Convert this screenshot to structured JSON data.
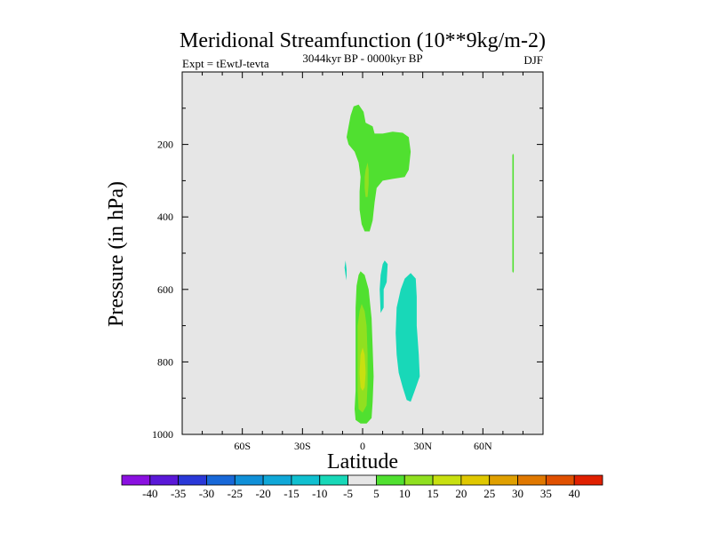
{
  "chart_data": {
    "type": "contour",
    "title": "Meridional Streamfunction (10**9kg/m-2)",
    "left_label": "Expt = tEwtJ-tevta",
    "center_label": "3044kyr BP - 0000kyr BP",
    "right_label": "DJF",
    "xlabel": "Latitude",
    "ylabel": "Pressure (in hPa)",
    "xlim": [
      -90,
      90
    ],
    "ylim": [
      1000,
      0
    ],
    "x_ticks": [
      -60,
      -30,
      0,
      30,
      60
    ],
    "x_tick_labels": [
      "60S",
      "30S",
      "0",
      "30N",
      "60N"
    ],
    "y_ticks": [
      200,
      400,
      600,
      800,
      1000
    ],
    "y_tick_labels": [
      "200",
      "400",
      "600",
      "800",
      "1000"
    ],
    "background_color": "#e6e6e6",
    "colorbar": {
      "labels": [
        "-40",
        "-35",
        "-30",
        "-25",
        "-20",
        "-15",
        "-10",
        "-5",
        "5",
        "10",
        "15",
        "20",
        "25",
        "30",
        "35",
        "40"
      ],
      "colors": [
        "#8a10e0",
        "#5a18d8",
        "#2a38d8",
        "#1868d8",
        "#1090d8",
        "#10a8d8",
        "#10c0d0",
        "#18d8b8",
        "#e6e6e6",
        "#50e030",
        "#90e020",
        "#c8e010",
        "#e0c800",
        "#e0a000",
        "#e07800",
        "#e05000",
        "#e02000"
      ]
    },
    "regions": [
      {
        "name": "upper-positive-5-10",
        "level": "5 to 10",
        "color": "#50e030",
        "points": [
          [
            -4.5,
            95
          ],
          [
            -2,
            90
          ],
          [
            0.5,
            110
          ],
          [
            1.5,
            140
          ],
          [
            5,
            150
          ],
          [
            6,
            170
          ],
          [
            10,
            170
          ],
          [
            15,
            165
          ],
          [
            20,
            168
          ],
          [
            23,
            180
          ],
          [
            24,
            220
          ],
          [
            23,
            270
          ],
          [
            21,
            290
          ],
          [
            15,
            295
          ],
          [
            10,
            300
          ],
          [
            7,
            320
          ],
          [
            6,
            360
          ],
          [
            5,
            410
          ],
          [
            3.5,
            440
          ],
          [
            1,
            440
          ],
          [
            -0.5,
            420
          ],
          [
            -1.5,
            380
          ],
          [
            -1.5,
            330
          ],
          [
            -1,
            290
          ],
          [
            -2,
            250
          ],
          [
            -4,
            220
          ],
          [
            -7,
            200
          ],
          [
            -8,
            180
          ],
          [
            -7,
            150
          ],
          [
            -6,
            120
          ]
        ]
      },
      {
        "name": "upper-positive-10-15",
        "level": "10 to 15",
        "color": "#90e020",
        "points": [
          [
            1.5,
            270
          ],
          [
            2.5,
            250
          ],
          [
            3,
            270
          ],
          [
            3,
            310
          ],
          [
            2.5,
            345
          ],
          [
            1.5,
            345
          ],
          [
            1,
            320
          ],
          [
            1,
            290
          ]
        ]
      },
      {
        "name": "lower-positive-5-10",
        "level": "5 to 10",
        "color": "#50e030",
        "points": [
          [
            -1,
            550
          ],
          [
            1,
            560
          ],
          [
            3,
            600
          ],
          [
            4.5,
            680
          ],
          [
            5,
            760
          ],
          [
            5.5,
            840
          ],
          [
            5,
            910
          ],
          [
            4.5,
            955
          ],
          [
            2,
            970
          ],
          [
            -1,
            970
          ],
          [
            -3.5,
            960
          ],
          [
            -4,
            930
          ],
          [
            -3.5,
            880
          ],
          [
            -3.5,
            800
          ],
          [
            -3.5,
            720
          ],
          [
            -3.5,
            650
          ],
          [
            -3,
            590
          ],
          [
            -2,
            560
          ]
        ]
      },
      {
        "name": "lower-positive-10-15",
        "level": "10 to 15",
        "color": "#90e020",
        "points": [
          [
            -0.5,
            640
          ],
          [
            1,
            660
          ],
          [
            2,
            700
          ],
          [
            2.5,
            780
          ],
          [
            2.5,
            860
          ],
          [
            2,
            920
          ],
          [
            0,
            940
          ],
          [
            -2,
            930
          ],
          [
            -2.5,
            880
          ],
          [
            -2.5,
            780
          ],
          [
            -2.5,
            700
          ],
          [
            -1.5,
            660
          ]
        ]
      },
      {
        "name": "lower-positive-15-20",
        "level": "15 to 20",
        "color": "#c8e010",
        "points": [
          [
            0,
            760
          ],
          [
            1,
            780
          ],
          [
            1.5,
            830
          ],
          [
            1,
            870
          ],
          [
            0,
            880
          ],
          [
            -1,
            870
          ],
          [
            -1.5,
            830
          ],
          [
            -1,
            780
          ]
        ]
      },
      {
        "name": "negative-cell-narrow",
        "level": "-5 to -10",
        "color": "#18d8b8",
        "points": [
          [
            11,
            520
          ],
          [
            12.5,
            530
          ],
          [
            12,
            580
          ],
          [
            10.5,
            600
          ],
          [
            10.5,
            650
          ],
          [
            9,
            665
          ],
          [
            8.5,
            600
          ],
          [
            9,
            560
          ],
          [
            10,
            530
          ]
        ]
      },
      {
        "name": "negative-cell-main",
        "level": "-5 to -10",
        "color": "#18d8b8",
        "points": [
          [
            24,
            555
          ],
          [
            26.5,
            570
          ],
          [
            27,
            620
          ],
          [
            27,
            700
          ],
          [
            28,
            780
          ],
          [
            28.5,
            840
          ],
          [
            26,
            880
          ],
          [
            24,
            910
          ],
          [
            22,
            905
          ],
          [
            20,
            870
          ],
          [
            18,
            830
          ],
          [
            17,
            780
          ],
          [
            16.5,
            720
          ],
          [
            17,
            650
          ],
          [
            19,
            600
          ],
          [
            21,
            570
          ]
        ]
      },
      {
        "name": "negative-sliver",
        "level": "-5 to -10",
        "color": "#18d8b8",
        "points": [
          [
            -8.5,
            520
          ],
          [
            -8,
            545
          ],
          [
            -8,
            575
          ],
          [
            -8.5,
            560
          ],
          [
            -9,
            540
          ]
        ]
      },
      {
        "name": "positive-sliver-north",
        "level": "5 to 10",
        "color": "#50e030",
        "points": [
          [
            75,
            225
          ],
          [
            75.4,
            230
          ],
          [
            75.4,
            550
          ],
          [
            75,
            555
          ],
          [
            74.7,
            550
          ],
          [
            74.7,
            230
          ]
        ]
      }
    ]
  }
}
